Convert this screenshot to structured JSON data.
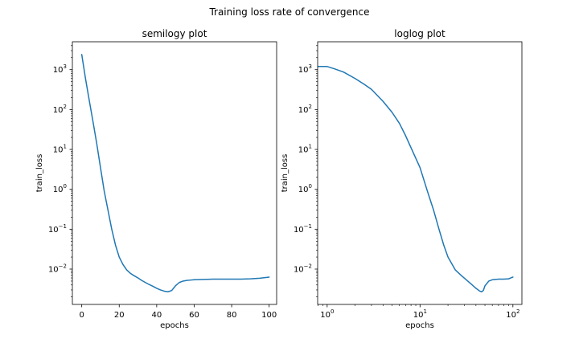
{
  "figure": {
    "suptitle": "Training loss rate of convergence"
  },
  "chart_data": [
    {
      "type": "line",
      "title": "semilogy plot",
      "xlabel": "epochs",
      "ylabel": "train_loss",
      "xscale": "linear",
      "yscale": "log",
      "xlim": [
        -5,
        104
      ],
      "ylim": [
        0.0013,
        5000
      ],
      "xticks": [
        0,
        20,
        40,
        60,
        80,
        100
      ],
      "xtick_labels": [
        "0",
        "20",
        "40",
        "60",
        "80",
        "100"
      ],
      "yticks": [
        0.01,
        0.1,
        1,
        10,
        100,
        1000
      ],
      "ytick_labels": [
        {
          "base": "10",
          "exp": "−2"
        },
        {
          "base": "10",
          "exp": "−1"
        },
        {
          "base": "10",
          "exp": "0"
        },
        {
          "base": "10",
          "exp": "1"
        },
        {
          "base": "10",
          "exp": "2"
        },
        {
          "base": "10",
          "exp": "3"
        }
      ],
      "grid": false,
      "series": [
        {
          "color": "#1f77b4",
          "x": [
            0,
            2,
            4,
            6,
            8,
            10,
            12,
            14,
            16,
            18,
            20,
            22,
            24,
            26,
            28,
            30,
            32,
            34,
            36,
            38,
            40,
            42,
            44,
            46,
            48,
            50,
            52,
            54,
            56,
            58,
            60,
            65,
            70,
            75,
            80,
            85,
            90,
            95,
            100
          ],
          "y": [
            2400,
            600,
            170,
            50,
            14,
            3.5,
            0.9,
            0.3,
            0.1,
            0.04,
            0.02,
            0.013,
            0.0095,
            0.0078,
            0.0068,
            0.006,
            0.0052,
            0.0046,
            0.0041,
            0.0037,
            0.0033,
            0.003,
            0.0028,
            0.0027,
            0.0029,
            0.0038,
            0.0046,
            0.005,
            0.0052,
            0.0053,
            0.0054,
            0.0055,
            0.0056,
            0.0056,
            0.0056,
            0.0056,
            0.0057,
            0.0059,
            0.0063
          ]
        }
      ]
    },
    {
      "type": "line",
      "title": "loglog plot",
      "xlabel": "epochs",
      "ylabel": "train_loss",
      "xscale": "log",
      "yscale": "log",
      "xlim": [
        0.79,
        125
      ],
      "ylim": [
        0.0013,
        5000
      ],
      "xticks": [
        1,
        10,
        100
      ],
      "xtick_labels": [
        {
          "base": "10",
          "exp": "0"
        },
        {
          "base": "10",
          "exp": "1"
        },
        {
          "base": "10",
          "exp": "2"
        }
      ],
      "yticks": [
        0.01,
        0.1,
        1,
        10,
        100,
        1000
      ],
      "ytick_labels": [
        {
          "base": "10",
          "exp": "−2"
        },
        {
          "base": "10",
          "exp": "−1"
        },
        {
          "base": "10",
          "exp": "0"
        },
        {
          "base": "10",
          "exp": "1"
        },
        {
          "base": "10",
          "exp": "2"
        },
        {
          "base": "10",
          "exp": "3"
        }
      ],
      "grid": false,
      "series": [
        {
          "color": "#1f77b4",
          "x": [
            0.8,
            1,
            1.2,
            1.5,
            2,
            2.5,
            3,
            4,
            5,
            6,
            7,
            8,
            10,
            12,
            14,
            16,
            18,
            20,
            24,
            28,
            32,
            36,
            40,
            44,
            46,
            48,
            50,
            55,
            60,
            70,
            80,
            90,
            100
          ],
          "y": [
            1200,
            1200,
            1050,
            870,
            600,
            430,
            320,
            160,
            85,
            45,
            22,
            11,
            3.5,
            0.9,
            0.3,
            0.1,
            0.04,
            0.02,
            0.0095,
            0.0068,
            0.0052,
            0.0041,
            0.0033,
            0.0028,
            0.0027,
            0.0029,
            0.0038,
            0.005,
            0.0054,
            0.0056,
            0.0056,
            0.0057,
            0.0063
          ]
        }
      ]
    }
  ]
}
